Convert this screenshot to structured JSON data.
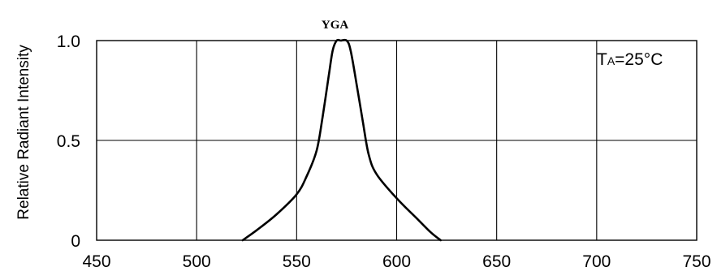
{
  "chart_data": {
    "type": "line",
    "title": "",
    "xlabel": "",
    "ylabel": "Relative Radiant Intensity",
    "xlim": [
      450,
      750
    ],
    "ylim": [
      0,
      1.0
    ],
    "x_ticks": [
      450,
      500,
      550,
      600,
      650,
      700,
      750
    ],
    "x_tick_labels": [
      "450",
      "500",
      "550",
      "600",
      "650",
      "700",
      "750"
    ],
    "y_ticks": [
      0,
      0.5,
      1.0
    ],
    "y_tick_labels": [
      "0",
      "0.5",
      "1.0"
    ],
    "grid": true,
    "series": [
      {
        "name": "YGA",
        "color": "#000000",
        "x": [
          523,
          530,
          540,
          550,
          555,
          560,
          563,
          566,
          568,
          570,
          572,
          575,
          577,
          580,
          583,
          586,
          590,
          600,
          610,
          617,
          622
        ],
        "y": [
          0.0,
          0.05,
          0.13,
          0.23,
          0.32,
          0.45,
          0.62,
          0.82,
          0.95,
          1.0,
          1.0,
          1.0,
          0.95,
          0.78,
          0.6,
          0.43,
          0.33,
          0.21,
          0.11,
          0.04,
          0.0
        ]
      }
    ],
    "annotations": [
      {
        "text_main": "T",
        "text_sub": "A",
        "text_rest": "=25°C",
        "position": "top-right"
      }
    ]
  }
}
